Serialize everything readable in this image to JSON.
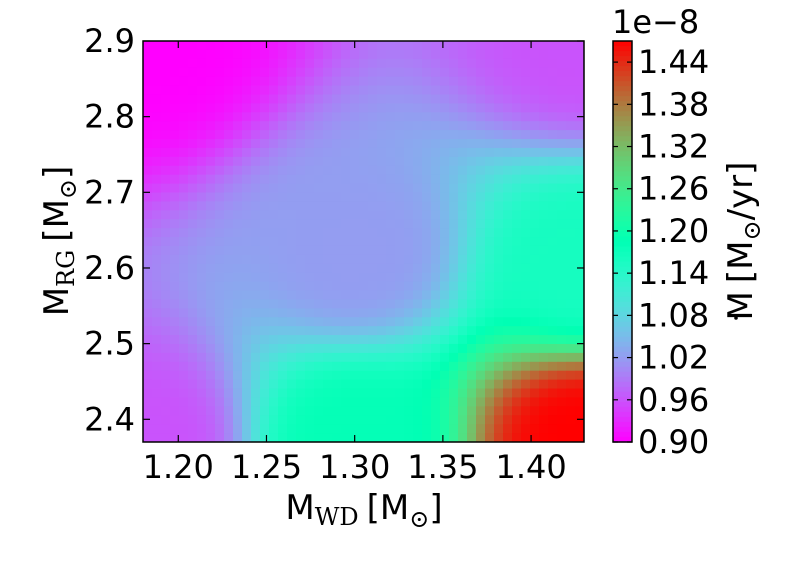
{
  "chart_data": {
    "type": "heatmap",
    "title": "",
    "x": {
      "label_main": "M",
      "label_sub": "WD",
      "label_units": "[M",
      "label_units_close": "]",
      "range": [
        1.18,
        1.43
      ],
      "ticks": [
        1.2,
        1.25,
        1.3,
        1.35,
        1.4
      ],
      "tick_labels": [
        "1.20",
        "1.25",
        "1.30",
        "1.35",
        "1.40"
      ]
    },
    "y": {
      "label_main": "M",
      "label_sub": "RG",
      "label_units": "[M",
      "label_units_close": "]",
      "range": [
        2.37,
        2.9
      ],
      "ticks": [
        2.4,
        2.5,
        2.6,
        2.7,
        2.8,
        2.9
      ],
      "tick_labels": [
        "2.4",
        "2.5",
        "2.6",
        "2.7",
        "2.8",
        "2.9"
      ]
    },
    "colorbar": {
      "label_main": "M",
      "label_units": "[M",
      "label_units_close": "/yr]",
      "offset_text": "1e−8",
      "range": [
        0.9,
        1.47
      ],
      "ticks": [
        0.9,
        0.96,
        1.02,
        1.08,
        1.14,
        1.2,
        1.26,
        1.32,
        1.38,
        1.44
      ],
      "tick_labels": [
        "0.90",
        "0.96",
        "1.02",
        "1.08",
        "1.14",
        "1.20",
        "1.26",
        "1.32",
        "1.38",
        "1.44"
      ],
      "colormap": "rainbow"
    },
    "z_samples": [
      {
        "x": 1.18,
        "y": 2.9,
        "z": 0.9
      },
      {
        "x": 1.18,
        "y": 2.37,
        "z": 0.96
      },
      {
        "x": 1.3,
        "y": 2.62,
        "z": 1.02
      },
      {
        "x": 1.3,
        "y": 2.37,
        "z": 1.18
      },
      {
        "x": 1.43,
        "y": 2.9,
        "z": 0.96
      },
      {
        "x": 1.43,
        "y": 2.6,
        "z": 1.16
      },
      {
        "x": 1.43,
        "y": 2.37,
        "z": 1.47
      }
    ]
  }
}
